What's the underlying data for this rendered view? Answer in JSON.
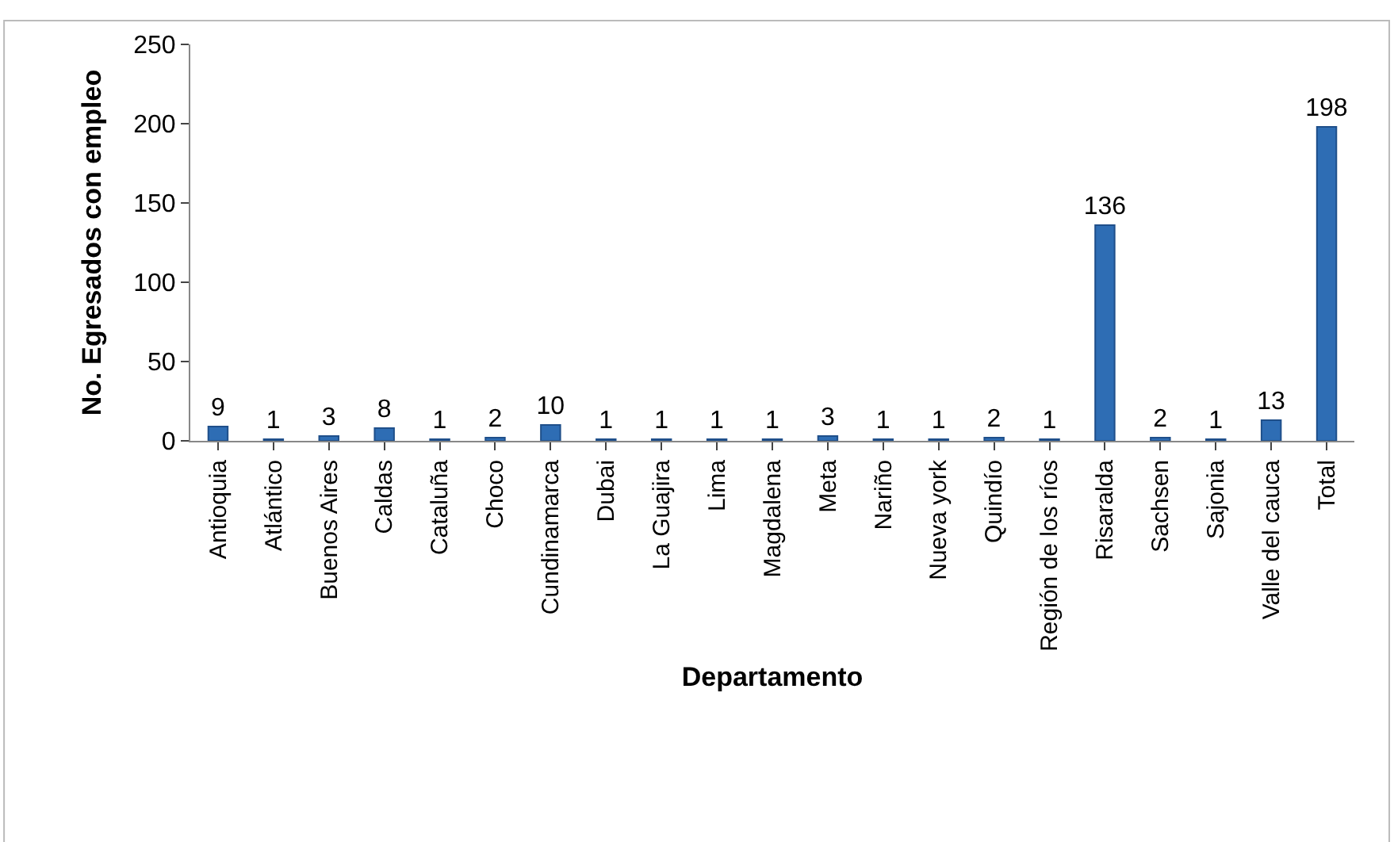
{
  "chart_data": {
    "type": "bar",
    "xlabel": "Departamento",
    "ylabel": "No. Egresados con empleo",
    "categories": [
      "Antioquia",
      "Atlántico",
      "Buenos Aires",
      "Caldas",
      "Cataluña",
      "Choco",
      "Cundinamarca",
      "Dubai",
      "La Guajira",
      "Lima",
      "Magdalena",
      "Meta",
      "Nariño",
      "Nueva york",
      "Quindío",
      "Región de los ríos",
      "Risaralda",
      "Sachsen",
      "Sajonia",
      "Valle del cauca",
      "Total"
    ],
    "values": [
      9,
      1,
      3,
      8,
      1,
      2,
      10,
      1,
      1,
      1,
      1,
      3,
      1,
      1,
      2,
      1,
      136,
      2,
      1,
      13,
      198
    ],
    "color": "#2e6db4",
    "ylim": [
      0,
      250
    ],
    "yticks": [
      0,
      50,
      100,
      150,
      200,
      250
    ],
    "grid": false,
    "legend": false,
    "data_labels": true
  }
}
